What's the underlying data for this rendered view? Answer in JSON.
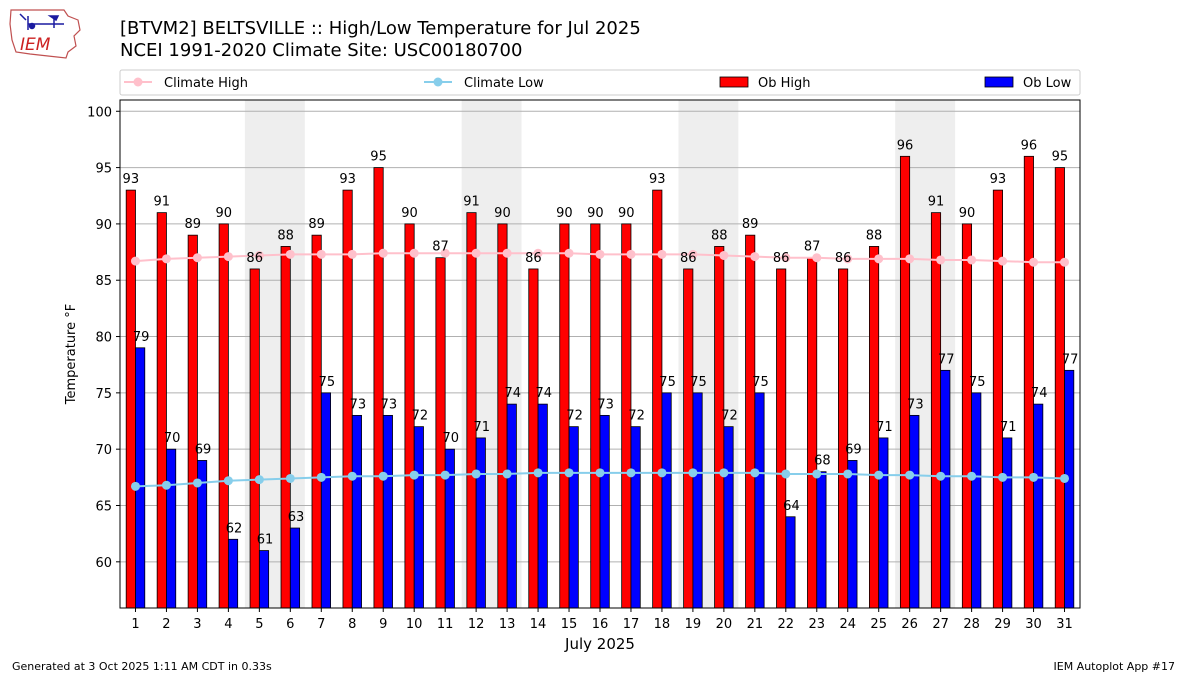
{
  "header": {
    "title_line1": "[BTVM2] BELTSVILLE :: High/Low Temperature for Jul 2025",
    "title_line2": "NCEI 1991-2020 Climate Site: USC00180700",
    "logo_text": "IEM"
  },
  "footer": {
    "generated": "Generated at 3 Oct 2025 1:11 AM CDT in 0.33s",
    "app": "IEM Autoplot App #17"
  },
  "colors": {
    "ob_high": "#ff0000",
    "ob_low": "#0000ff",
    "climate_high": "#ffc0cb",
    "climate_low": "#87ceeb",
    "weekend_shade": "#eeeeee"
  },
  "chart_data": {
    "type": "bar",
    "xlabel": "July 2025",
    "ylabel": "Temperature °F",
    "ylim": [
      55.9,
      101
    ],
    "yticks": [
      60,
      65,
      70,
      75,
      80,
      85,
      90,
      95,
      100
    ],
    "grid": true,
    "legend_position": "top",
    "categories": [
      "1",
      "2",
      "3",
      "4",
      "5",
      "6",
      "7",
      "8",
      "9",
      "10",
      "11",
      "12",
      "13",
      "14",
      "15",
      "16",
      "17",
      "18",
      "19",
      "20",
      "21",
      "22",
      "23",
      "24",
      "25",
      "26",
      "27",
      "28",
      "29",
      "30",
      "31"
    ],
    "shaded_days": [
      [
        "5",
        "6"
      ],
      [
        "12",
        "13"
      ],
      [
        "19",
        "20"
      ],
      [
        "26",
        "27"
      ]
    ],
    "legend": [
      "Climate High",
      "Climate Low",
      "Ob High",
      "Ob Low"
    ],
    "series": [
      {
        "name": "Ob High",
        "kind": "bar",
        "values": [
          93,
          91,
          89,
          90,
          86,
          88,
          89,
          93,
          95,
          90,
          87,
          91,
          90,
          86,
          90,
          90,
          90,
          93,
          86,
          88,
          89,
          86,
          87,
          86,
          88,
          96,
          91,
          90,
          93,
          96,
          95
        ]
      },
      {
        "name": "Ob Low",
        "kind": "bar",
        "values": [
          79,
          70,
          69,
          62,
          61,
          63,
          75,
          73,
          73,
          72,
          70,
          71,
          74,
          74,
          72,
          73,
          72,
          75,
          75,
          72,
          75,
          64,
          68,
          69,
          71,
          73,
          77,
          75,
          71,
          74,
          77
        ]
      },
      {
        "name": "Climate High",
        "kind": "line",
        "values": [
          86.7,
          86.9,
          87.0,
          87.1,
          87.2,
          87.3,
          87.3,
          87.3,
          87.4,
          87.4,
          87.4,
          87.4,
          87.4,
          87.4,
          87.4,
          87.3,
          87.3,
          87.3,
          87.3,
          87.2,
          87.1,
          87.0,
          87.0,
          86.9,
          86.9,
          86.9,
          86.8,
          86.8,
          86.7,
          86.6,
          86.6
        ]
      },
      {
        "name": "Climate Low",
        "kind": "line",
        "values": [
          66.7,
          66.8,
          67.0,
          67.2,
          67.3,
          67.4,
          67.5,
          67.6,
          67.6,
          67.7,
          67.7,
          67.8,
          67.8,
          67.9,
          67.9,
          67.9,
          67.9,
          67.9,
          67.9,
          67.9,
          67.9,
          67.8,
          67.8,
          67.8,
          67.7,
          67.7,
          67.6,
          67.6,
          67.5,
          67.5,
          67.4
        ]
      }
    ]
  }
}
